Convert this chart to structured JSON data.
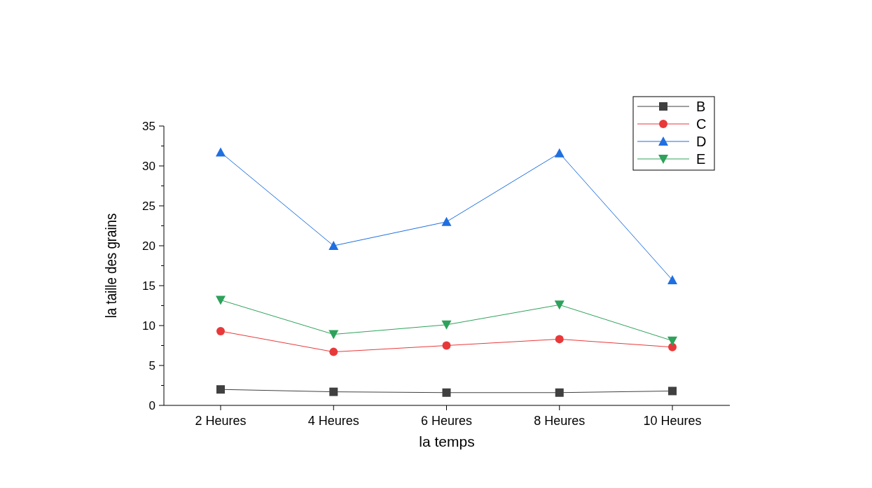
{
  "chart_data": {
    "type": "line",
    "xlabel": "la temps",
    "ylabel": "la taille des grains",
    "categories": [
      "2 Heures",
      "4 Heures",
      "6 Heures",
      "8 Heures",
      "10 Heures"
    ],
    "ylim": [
      0,
      35
    ],
    "yticks": [
      0,
      {
        "value": 2.5,
        "label": null
      },
      5,
      {
        "value": 7.5,
        "label": null
      },
      10,
      {
        "value": 12.5,
        "label": null
      },
      15,
      {
        "value": 17.5,
        "label": null
      },
      20,
      {
        "value": 22.5,
        "label": null
      },
      25,
      {
        "value": 27.5,
        "label": null
      },
      30,
      {
        "value": 32.5,
        "label": null
      },
      35
    ],
    "legend": "top right",
    "grid": false,
    "line_style": "solid",
    "series": [
      {
        "name": "B",
        "color": "#404040",
        "marker": "square",
        "values": [
          2.0,
          1.7,
          1.6,
          1.6,
          1.8
        ]
      },
      {
        "name": "C",
        "color": "#e8393a",
        "marker": "circle",
        "values": [
          9.3,
          6.7,
          7.5,
          8.3,
          7.3
        ]
      },
      {
        "name": "D",
        "color": "#1f6fe0",
        "marker": "triangle",
        "values": [
          31.7,
          20.0,
          23.0,
          31.6,
          15.7
        ]
      },
      {
        "name": "E",
        "color": "#2ea15a",
        "marker": "triangle-down",
        "values": [
          13.2,
          8.9,
          10.1,
          12.6,
          8.1
        ]
      }
    ]
  }
}
